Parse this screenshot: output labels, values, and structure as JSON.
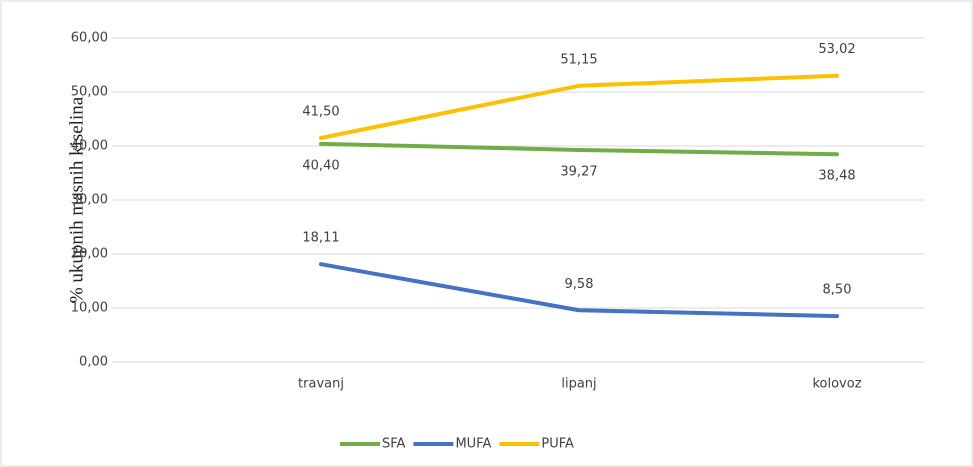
{
  "chart_data": {
    "type": "line",
    "y_label": "% ukupnih masnih kiselina",
    "categories": [
      "travanj",
      "lipanj",
      "kolovoz"
    ],
    "series": [
      {
        "name": "SFA",
        "color": "#70ad47",
        "values": [
          40.4,
          39.27,
          38.48
        ],
        "value_labels": [
          "40,40",
          "39,27",
          "38,48"
        ]
      },
      {
        "name": "MUFA",
        "color": "#4472c4",
        "values": [
          18.11,
          9.58,
          8.5
        ],
        "value_labels": [
          "18,11",
          "9,58",
          "8,50"
        ]
      },
      {
        "name": "PUFA",
        "color": "#ffc000",
        "values": [
          41.5,
          51.15,
          53.02
        ],
        "value_labels": [
          "41,50",
          "51,15",
          "53,02"
        ]
      }
    ],
    "ylim": [
      0,
      60
    ],
    "yticks": [
      {
        "value": 0,
        "label": "0,00"
      },
      {
        "value": 10,
        "label": "10,00"
      },
      {
        "value": 20,
        "label": "20,00"
      },
      {
        "value": 30,
        "label": "30,00"
      },
      {
        "value": 40,
        "label": "40,00"
      },
      {
        "value": 50,
        "label": "50,00"
      },
      {
        "value": 60,
        "label": "60,00"
      }
    ],
    "grid": true,
    "legend": "bottom"
  }
}
